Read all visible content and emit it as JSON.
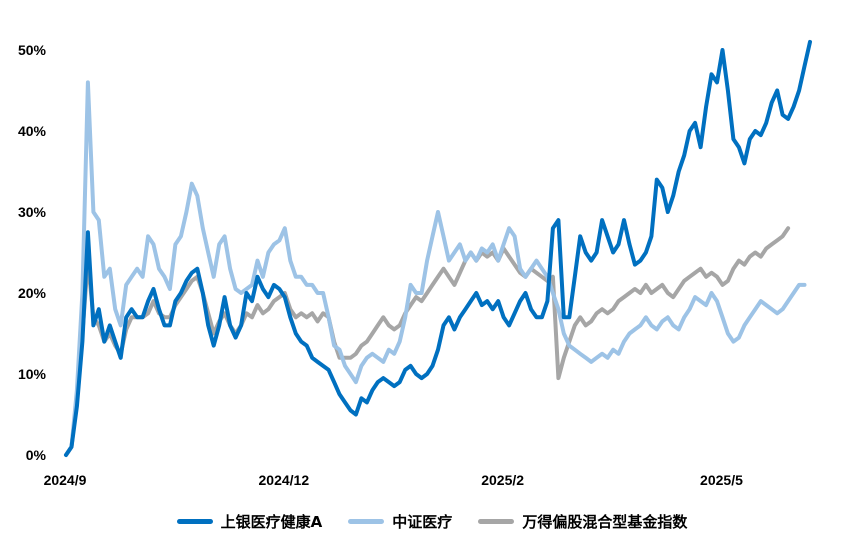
{
  "chart_data": {
    "type": "line",
    "title": "",
    "xlabel": "",
    "ylabel": "",
    "ylim": [
      0,
      55
    ],
    "y_ticks": [
      "0%",
      "10%",
      "20%",
      "30%",
      "40%",
      "50%"
    ],
    "y_tick_values": [
      0,
      10,
      20,
      30,
      40,
      50
    ],
    "x_ticks": [
      "2024/9",
      "2024/12",
      "2025/2",
      "2025/5"
    ],
    "x_tick_indices": [
      0,
      40,
      80,
      120
    ],
    "grid": false,
    "legend_position": "bottom",
    "series": [
      {
        "name": "上银医疗健康A",
        "color": "#0070C0",
        "values": [
          0,
          1,
          6,
          14,
          27.5,
          16,
          18,
          14,
          16,
          14,
          12,
          17,
          18,
          17,
          17,
          19,
          20.5,
          18,
          16,
          16,
          19,
          20,
          21.5,
          22.5,
          23,
          20,
          16,
          13.5,
          16,
          19.5,
          16,
          14.5,
          16,
          20,
          19,
          22,
          20.5,
          19.5,
          21,
          20.5,
          19.5,
          17,
          15,
          14,
          13.5,
          12,
          11.5,
          11,
          10.5,
          9,
          7.5,
          6.5,
          5.5,
          5,
          7,
          6.5,
          8,
          9,
          9.5,
          9,
          8.5,
          9,
          10.5,
          11,
          10,
          9.5,
          10,
          11,
          13,
          16,
          17,
          15.5,
          17,
          18,
          19,
          20,
          18.5,
          19,
          18,
          19,
          17,
          16,
          17.5,
          19,
          20,
          18,
          17,
          17,
          19,
          28,
          29,
          17,
          17,
          22,
          27,
          25,
          24,
          25,
          29,
          27,
          25,
          26,
          29,
          26,
          23.5,
          24,
          25,
          27,
          34,
          33,
          30,
          32,
          35,
          37,
          40,
          41,
          38,
          43,
          47,
          46,
          50,
          45,
          39,
          38,
          36,
          39,
          40,
          39.5,
          41,
          43.5,
          45,
          42,
          41.5,
          43,
          45,
          48,
          51
        ]
      },
      {
        "name": "中证医疗",
        "color": "#9DC3E6",
        "values": [
          0,
          1,
          8,
          20,
          46,
          30,
          29,
          22,
          23,
          18,
          16,
          21,
          22,
          23,
          22,
          27,
          26,
          23,
          22,
          20.5,
          26,
          27,
          30,
          33.5,
          32,
          28,
          25,
          22,
          26,
          27,
          23,
          20.5,
          20,
          20.5,
          21,
          24,
          22,
          25,
          26,
          26.5,
          28,
          24,
          22,
          22,
          21,
          21,
          20,
          20,
          17,
          13.5,
          13,
          11,
          10,
          9,
          11,
          12,
          12.5,
          12,
          11.5,
          13,
          12.5,
          14,
          17,
          21,
          20,
          20,
          24,
          27,
          30,
          27,
          24,
          25,
          26,
          24,
          25,
          24,
          25.5,
          25,
          26,
          24,
          26,
          28,
          27,
          23,
          22,
          23,
          24,
          23,
          22,
          20,
          18,
          15,
          13.5,
          13,
          12.5,
          12,
          11.5,
          12,
          12.5,
          12,
          13,
          12.5,
          14,
          15,
          15.5,
          16,
          17,
          16,
          15.5,
          16.5,
          17,
          16,
          15.5,
          17,
          18,
          19.5,
          19,
          18.5,
          20,
          19,
          17,
          15,
          14,
          14.5,
          16,
          17,
          18,
          19,
          18.5,
          18,
          17.5,
          18,
          19,
          20,
          21,
          21
        ]
      },
      {
        "name": "万得偏股混合型基金指数",
        "color": "#A6A6A6",
        "values": [
          0,
          1,
          7,
          15,
          24,
          17,
          16,
          14,
          15,
          13.5,
          12.5,
          15.5,
          17,
          17,
          17,
          17.5,
          19,
          17.5,
          17,
          17,
          18.5,
          19.5,
          20.5,
          21.5,
          22,
          20,
          17.5,
          15,
          16.5,
          17.5,
          16,
          15,
          16,
          17.5,
          17,
          18.5,
          17.5,
          18,
          19,
          19.5,
          20,
          18,
          17,
          17.5,
          17,
          17.5,
          16.5,
          17.5,
          17,
          14,
          12,
          12,
          12,
          12.5,
          13.5,
          14,
          15,
          16,
          17,
          16,
          15.5,
          16,
          17.5,
          18.5,
          19.5,
          19,
          20,
          21,
          22,
          23,
          22,
          21,
          22.5,
          24,
          25,
          24,
          25,
          24.5,
          25,
          24,
          25.5,
          24.5,
          23.5,
          22.5,
          22,
          23,
          22.5,
          22,
          21.5,
          22,
          9.5,
          12,
          14,
          16,
          17,
          16,
          16.5,
          17.5,
          18,
          17.5,
          18,
          19,
          19.5,
          20,
          20.5,
          20,
          21,
          20,
          20.5,
          21,
          20,
          19.5,
          20.5,
          21.5,
          22,
          22.5,
          23,
          22,
          22.5,
          22,
          21,
          21.5,
          23,
          24,
          23.5,
          24.5,
          25,
          24.5,
          25.5,
          26,
          26.5,
          27,
          28
        ]
      }
    ]
  }
}
